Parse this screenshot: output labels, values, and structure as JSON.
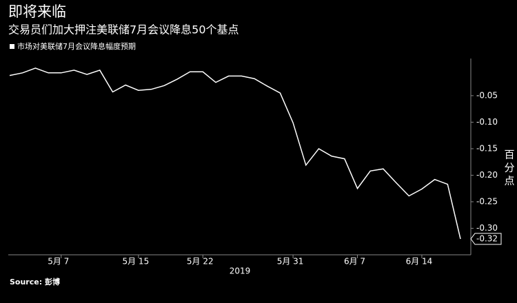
{
  "chart_data": {
    "type": "line",
    "title": "即将来临",
    "subtitle": "交易员们加大押注美联储7月会议降息50个基点",
    "y_label": "百分点",
    "x_label": "2019",
    "source": "Source: 彭博",
    "categories": [
      null,
      null,
      null,
      null,
      "5月 7",
      null,
      null,
      null,
      null,
      null,
      "5月 15",
      null,
      null,
      null,
      null,
      "5月 22",
      null,
      null,
      null,
      null,
      null,
      null,
      "5月 31",
      null,
      null,
      null,
      null,
      "6月 7",
      null,
      null,
      null,
      null,
      "6月 14",
      null,
      null,
      null
    ],
    "series": [
      {
        "name": "市场对美联储7月会议降息幅度预期",
        "color": "#ffffff",
        "values": [
          -0.012,
          -0.007,
          0.002,
          -0.007,
          -0.007,
          -0.002,
          -0.01,
          -0.002,
          -0.043,
          -0.03,
          -0.04,
          -0.038,
          -0.031,
          -0.019,
          -0.005,
          -0.005,
          -0.025,
          -0.013,
          -0.013,
          -0.018,
          -0.032,
          -0.045,
          -0.101,
          -0.181,
          -0.15,
          -0.164,
          -0.169,
          -0.225,
          -0.192,
          -0.188,
          -0.214,
          -0.239,
          -0.226,
          -0.208,
          -0.217,
          -0.32
        ]
      }
    ],
    "ylim": [
      -0.35,
      0.02
    ],
    "yticks": [
      -0.05,
      {
        "value": -0.1,
        "label": "-0.10"
      },
      -0.15,
      {
        "value": -0.2,
        "label": "-0.20"
      },
      -0.25,
      {
        "value": -0.3,
        "label": "-0.30"
      }
    ],
    "grid": false
  }
}
